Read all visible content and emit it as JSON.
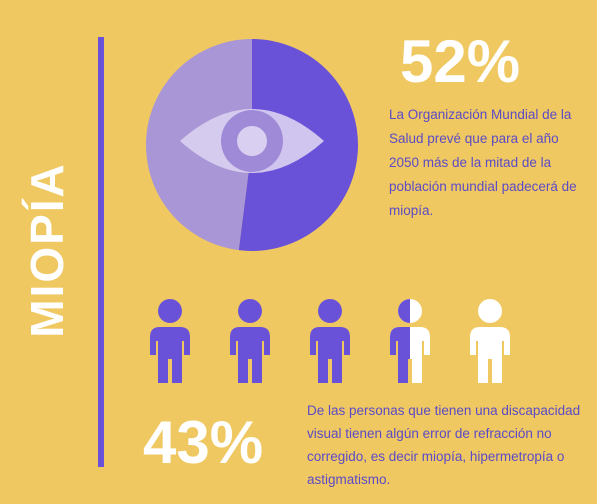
{
  "title": "MIOPÍA",
  "top_stat": {
    "value": "52%",
    "text": "La Organización Mundial de la Salud prevé que para el año 2050 más de la mitad de la población mundial padecerá de miopía."
  },
  "bottom_stat": {
    "value": "43%",
    "text": "De las personas que tienen una discapacidad visual tienen algún error de refracción no corregido, es decir miopía, hipermetropía o astigmatismo."
  },
  "colors": {
    "background": "#f0c862",
    "accent": "#6a52d8",
    "accent_light": "#a996d6",
    "white": "#ffffff"
  },
  "chart_data": {
    "type": "pie",
    "values": [
      52,
      48
    ],
    "colors": [
      "#6a52d8",
      "#a996d6"
    ]
  },
  "people_icons": {
    "total": 5,
    "filled": 3.5,
    "icon": "person-icon"
  }
}
